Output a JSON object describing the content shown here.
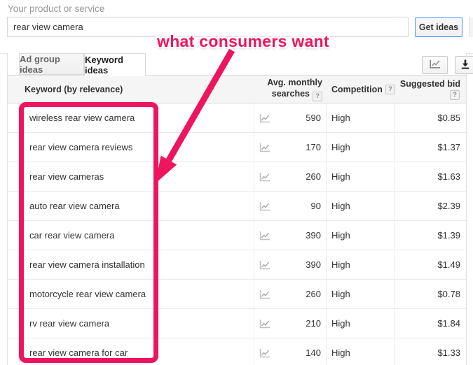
{
  "search_bar": {
    "label": "Your product or service",
    "value": "rear view camera",
    "button_label": "Get ideas"
  },
  "annotation": {
    "text": "what consumers want"
  },
  "tabs": [
    {
      "label": "Ad group ideas",
      "active": false
    },
    {
      "label": "Keyword ideas",
      "active": true
    }
  ],
  "icons": {
    "toolbar_chart": "line-chart-icon",
    "toolbar_download": "download-icon",
    "row_trend": "sparkline-trend-icon",
    "help_glyph": "?"
  },
  "table": {
    "columns": {
      "keyword": "Keyword (by relevance)",
      "searches": "Avg. monthly searches",
      "competition": "Competition",
      "bid": "Suggested bid"
    },
    "rows": [
      {
        "keyword": "wireless rear view camera",
        "searches": "590",
        "competition": "High",
        "bid": "$0.85"
      },
      {
        "keyword": "rear view camera reviews",
        "searches": "170",
        "competition": "High",
        "bid": "$1.37"
      },
      {
        "keyword": "rear view cameras",
        "searches": "260",
        "competition": "High",
        "bid": "$1.63"
      },
      {
        "keyword": "auto rear view camera",
        "searches": "90",
        "competition": "High",
        "bid": "$2.39"
      },
      {
        "keyword": "car rear view camera",
        "searches": "390",
        "competition": "High",
        "bid": "$1.39"
      },
      {
        "keyword": "rear view camera installation",
        "searches": "390",
        "competition": "High",
        "bid": "$1.49"
      },
      {
        "keyword": "motorcycle rear view camera",
        "searches": "260",
        "competition": "High",
        "bid": "$0.78"
      },
      {
        "keyword": "rv rear view camera",
        "searches": "210",
        "competition": "High",
        "bid": "$1.84"
      },
      {
        "keyword": "rear view camera for car",
        "searches": "140",
        "competition": "High",
        "bid": "$1.33"
      }
    ]
  },
  "colors": {
    "accent_pink": "#ED155E",
    "button_border_blue": "#4D90FE",
    "header_bg": "#F5F5F5"
  }
}
